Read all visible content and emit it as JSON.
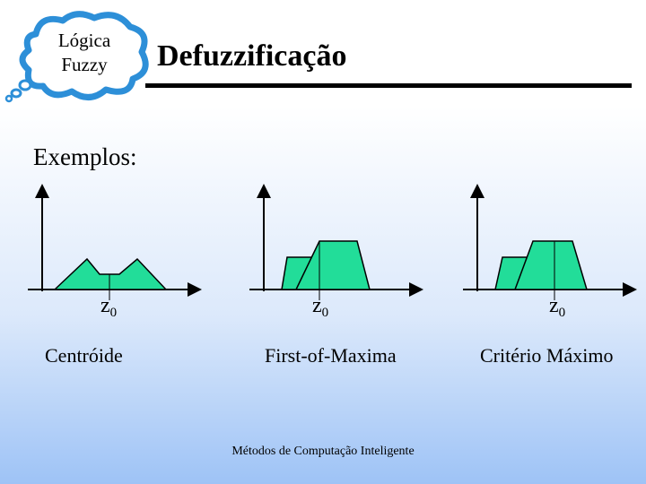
{
  "logo": {
    "line1": "Lógica",
    "line2": "Fuzzy"
  },
  "title": "Defuzzificação",
  "section_label": "Exemplos:",
  "panels": [
    {
      "z_base": "z",
      "z_sub": "0",
      "method": "Centróide"
    },
    {
      "z_base": "z",
      "z_sub": "0",
      "method": "First-of-Maxima"
    },
    {
      "z_base": "z",
      "z_sub": "0",
      "method": "Critério Máximo"
    }
  ],
  "footer": "Métodos de Computação Inteligente",
  "colors": {
    "fill": "#22dd99",
    "stroke": "#000000",
    "cloud": "#2d8fd8"
  }
}
